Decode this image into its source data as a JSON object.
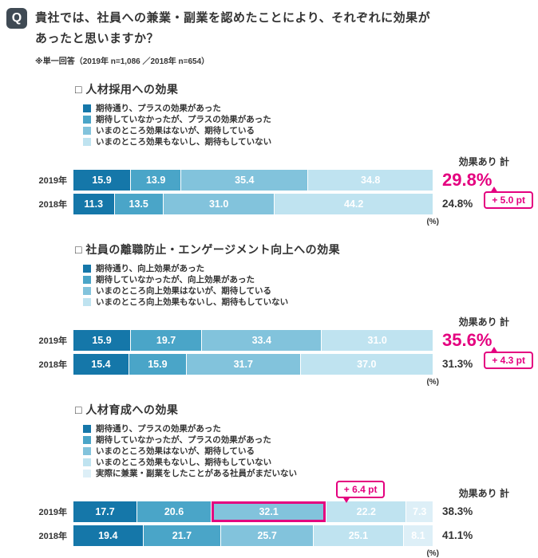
{
  "colors": {
    "accent": "#e4007f",
    "text": "#333333",
    "q_badge_bg": "#3f4a54",
    "segments": [
      "#1577a9",
      "#4aa5c8",
      "#82c3dc",
      "#bfe3f0",
      "#ddeff7"
    ]
  },
  "header": {
    "q": "Q",
    "title_line1": "貴社では、社員への兼業・副業を認めたことにより、それぞれに効果が",
    "title_line2": "あったと思いますか？",
    "note": "※単一回答（2019年 n=1,086 ／2018年 n=654）"
  },
  "labels": {
    "effect_total": "効果あり 計",
    "unit": "(%)"
  },
  "chart_data": [
    {
      "type": "bar",
      "stacked": true,
      "orientation": "horizontal",
      "bullet": "□",
      "title": "人材採用への効果",
      "xlim": [
        0,
        100
      ],
      "unit": "%",
      "legend": [
        "期待通り、プラスの効果があった",
        "期待していなかったが、プラスの効果があった",
        "いまのところ効果はないが、期待している",
        "いまのところ効果もないし、期待もしていない"
      ],
      "rows": [
        {
          "label": "2019年",
          "values": [
            15.9,
            13.9,
            35.4,
            34.8
          ],
          "total": "29.8%",
          "emphasis": true
        },
        {
          "label": "2018年",
          "values": [
            11.3,
            13.5,
            31.0,
            44.2
          ],
          "total": "24.8%",
          "emphasis": false
        }
      ],
      "badge": {
        "text": "+ 5.0 pt",
        "placement": "totals"
      }
    },
    {
      "type": "bar",
      "stacked": true,
      "orientation": "horizontal",
      "bullet": "□",
      "title": "社員の離職防止・エンゲージメント向上への効果",
      "xlim": [
        0,
        100
      ],
      "unit": "%",
      "legend": [
        "期待通り、向上効果があった",
        "期待していなかったが、向上効果があった",
        "いまのところ向上効果はないが、期待している",
        "いまのところ向上効果もないし、期待もしていない"
      ],
      "rows": [
        {
          "label": "2019年",
          "values": [
            15.9,
            19.7,
            33.4,
            31.0
          ],
          "total": "35.6%",
          "emphasis": true
        },
        {
          "label": "2018年",
          "values": [
            15.4,
            15.9,
            31.7,
            37.0
          ],
          "total": "31.3%",
          "emphasis": false
        }
      ],
      "badge": {
        "text": "+ 4.3 pt",
        "placement": "totals"
      }
    },
    {
      "type": "bar",
      "stacked": true,
      "orientation": "horizontal",
      "bullet": "□",
      "title": "人材育成への効果",
      "xlim": [
        0,
        100
      ],
      "unit": "%",
      "legend": [
        "期待通り、プラスの効果があった",
        "期待していなかったが、プラスの効果があった",
        "いまのところ効果はないが、期待している",
        "いまのところ効果もないし、期待もしていない",
        "実際に兼業・副業をしたことがある社員がまだいない"
      ],
      "rows": [
        {
          "label": "2019年",
          "values": [
            17.7,
            20.6,
            32.1,
            22.2,
            7.3
          ],
          "total": "38.3%",
          "emphasis": false,
          "highlight_segment": 2
        },
        {
          "label": "2018年",
          "values": [
            19.4,
            21.7,
            25.7,
            25.1,
            8.1
          ],
          "total": "41.1%",
          "emphasis": false
        }
      ],
      "badge": {
        "text": "+ 6.4 pt",
        "placement": "above-segment",
        "row": 0,
        "segment": 2
      }
    }
  ]
}
